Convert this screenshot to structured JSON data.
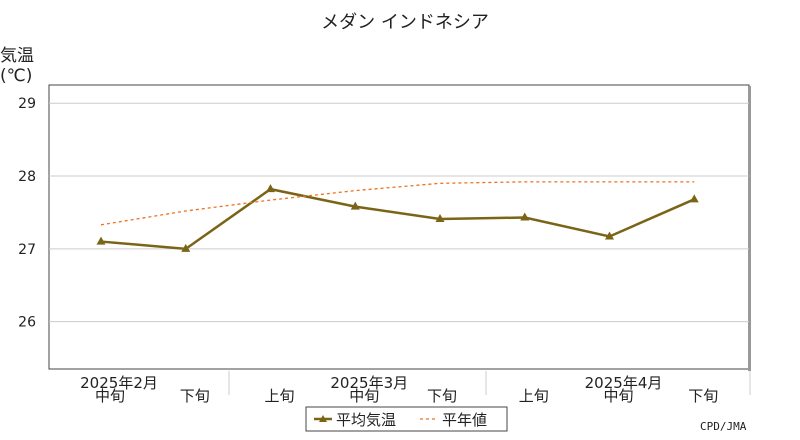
{
  "chart_data": {
    "type": "line",
    "title": "メダン インドネシア",
    "ylabel": "気温",
    "yunit": "(℃)",
    "ylim": [
      25.35,
      29.25
    ],
    "yticks": [
      26,
      27,
      28,
      29
    ],
    "categories": [
      "中旬",
      "下旬",
      "上旬",
      "中旬",
      "下旬",
      "上旬",
      "中旬",
      "下旬"
    ],
    "month_groups": [
      {
        "label": "2025年2月",
        "start": 0,
        "end": 1
      },
      {
        "label": "2025年3月",
        "start": 2,
        "end": 4
      },
      {
        "label": "2025年4月",
        "start": 5,
        "end": 7
      }
    ],
    "series": [
      {
        "name": "平均気温",
        "style": "solid-triangle",
        "color": "#7a6416",
        "values": [
          27.1,
          27.0,
          27.82,
          27.58,
          27.41,
          27.43,
          27.17,
          27.68
        ]
      },
      {
        "name": "平年値",
        "style": "dashed",
        "color": "#f07020",
        "values": [
          27.33,
          27.52,
          27.67,
          27.8,
          27.9,
          27.92,
          27.92,
          27.92
        ]
      }
    ],
    "grid": true,
    "legend": "bottom-center",
    "credit": "CPD/JMA"
  }
}
